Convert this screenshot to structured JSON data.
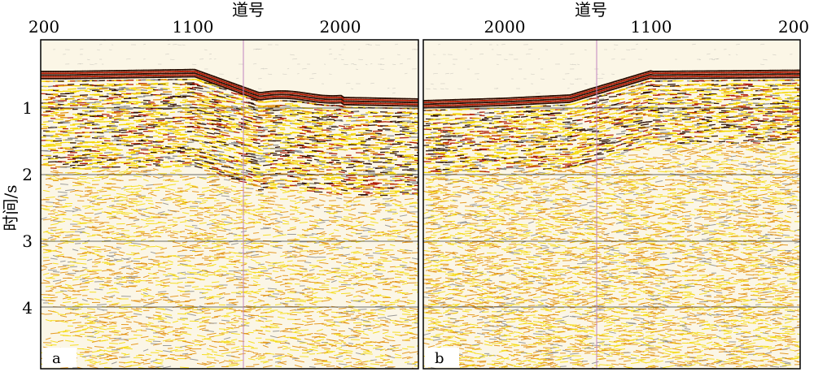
{
  "figure": {
    "xlabel": "道号",
    "ylabel": "时间/s",
    "y_ticks": [
      "1",
      "2",
      "3",
      "4"
    ],
    "panels": [
      {
        "label": "a",
        "x_ticks": [
          "200",
          "1100",
          "2000"
        ]
      },
      {
        "label": "b",
        "x_ticks": [
          "2000",
          "1100",
          "200"
        ]
      }
    ]
  },
  "colors": {
    "wiggle_dark": "#2a0c00",
    "wiggle_red": "#b01800",
    "wiggle_orange": "#e08a00",
    "wiggle_yellow": "#f5d800",
    "noise_gray": "#8a8a8a",
    "cursor_line": "#c084c0",
    "frame": "#000000"
  }
}
